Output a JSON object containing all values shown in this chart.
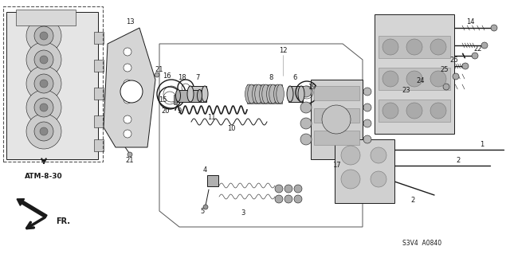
{
  "background_color": "#ffffff",
  "fig_width": 6.4,
  "fig_height": 3.19,
  "dpi": 100,
  "atm_label": "ATM-8-30",
  "code_label": "S3V4  A0840",
  "line_color": "#1a1a1a",
  "gray_light": "#d0d0d0",
  "gray_mid": "#a0a0a0",
  "gray_dark": "#606060"
}
